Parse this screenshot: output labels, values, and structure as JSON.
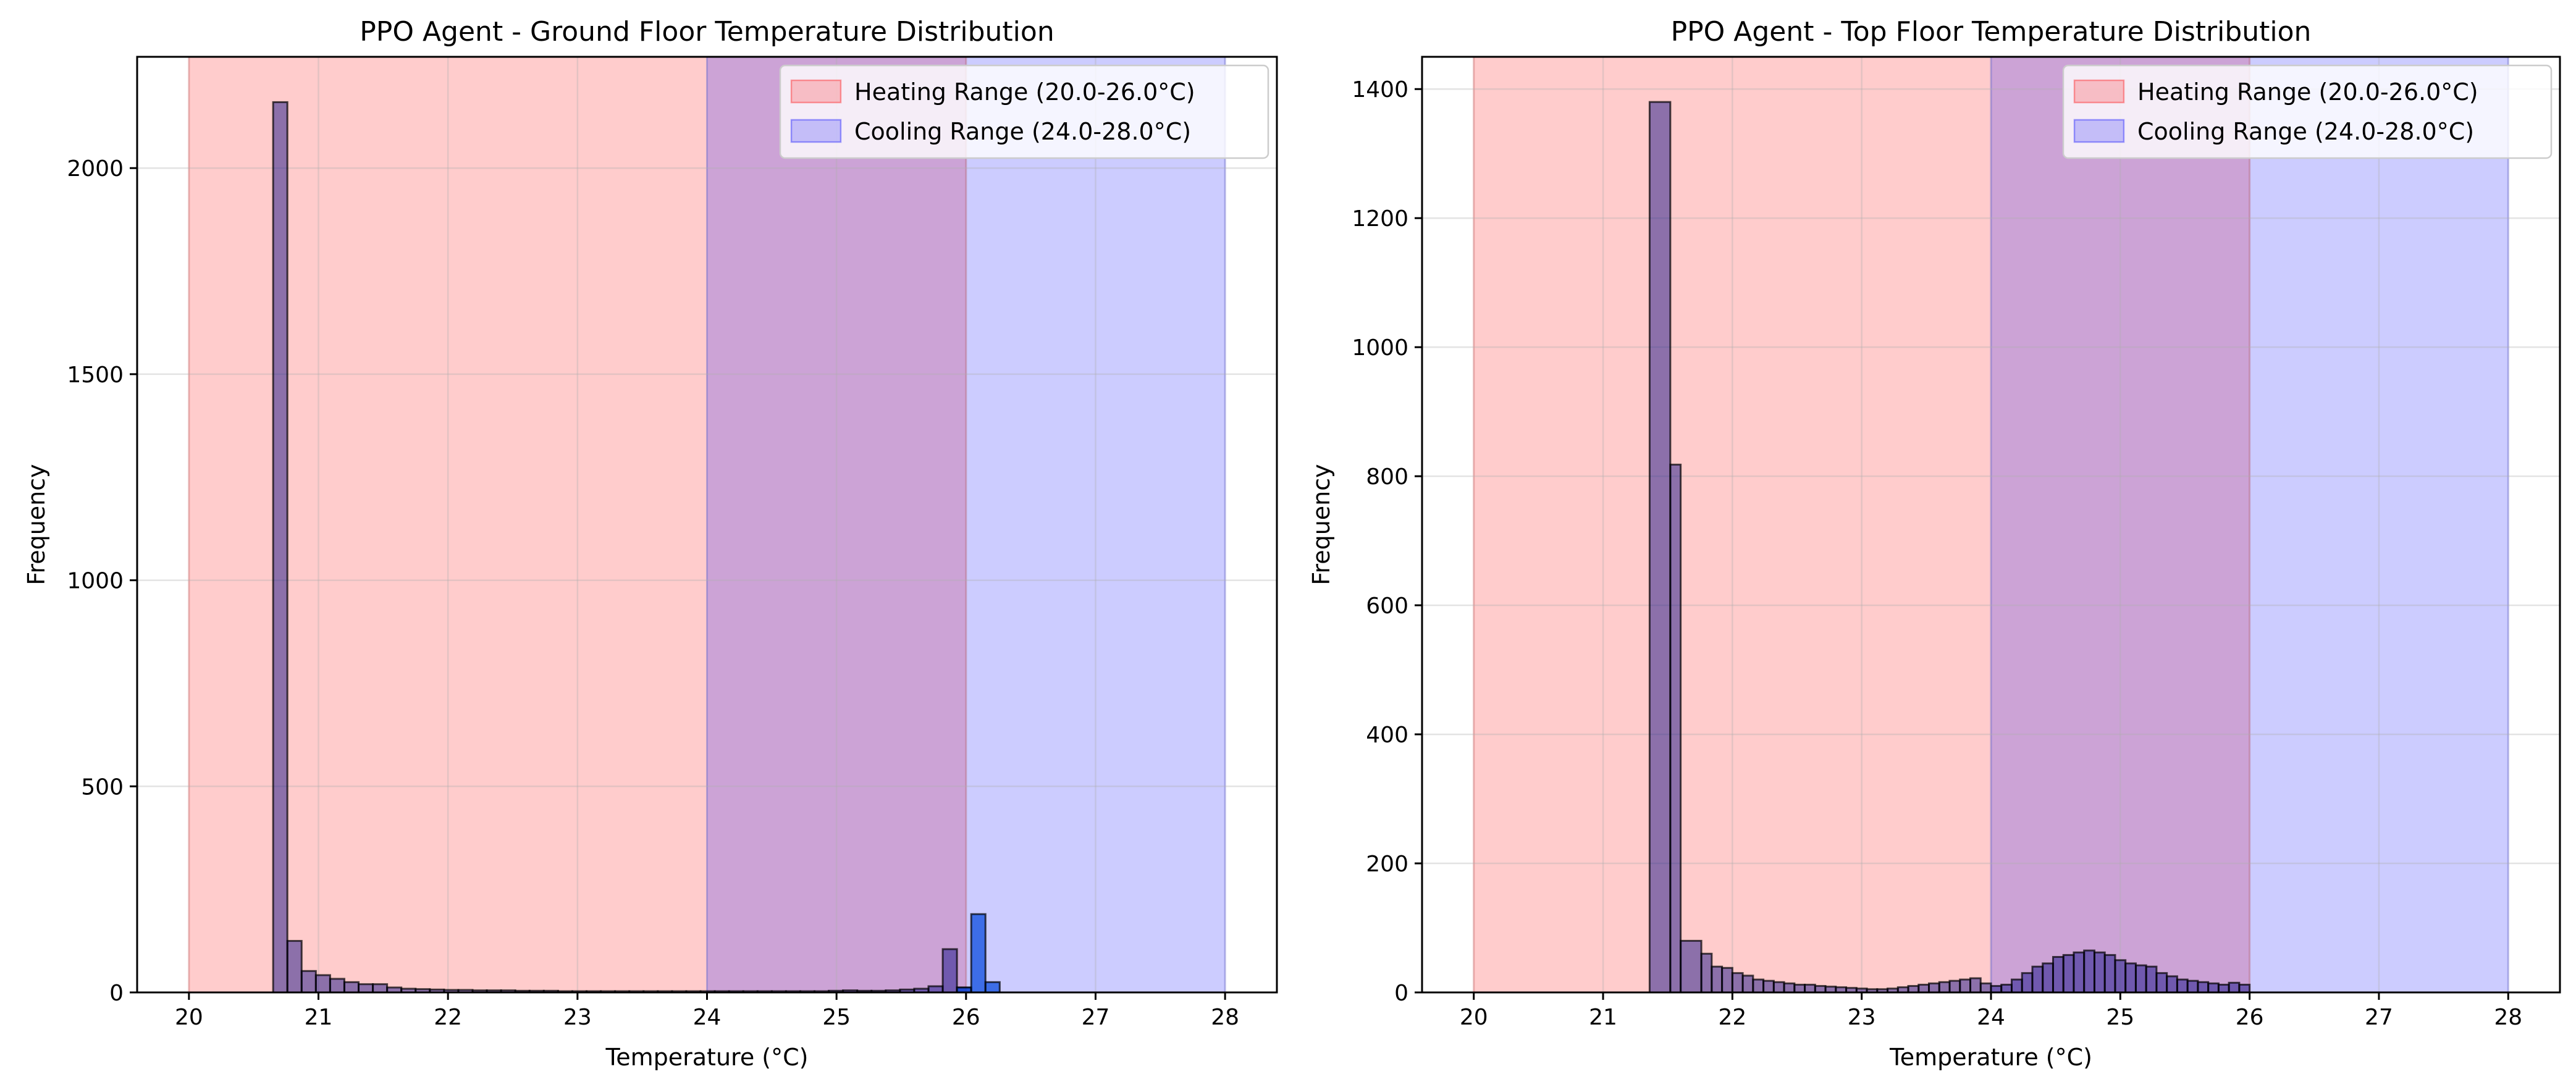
{
  "chart_data": [
    {
      "type": "bar",
      "title": "PPO Agent - Ground Floor Temperature Distribution",
      "xlabel": "Temperature (°C)",
      "ylabel": "Frequency",
      "xlim": [
        19.6,
        28.4
      ],
      "ylim": [
        0,
        2270
      ],
      "xticks": [
        20,
        21,
        22,
        23,
        24,
        25,
        26,
        27,
        28
      ],
      "yticks": [
        0,
        500,
        1000,
        1500,
        2000
      ],
      "grid": true,
      "legend_position": "top-right",
      "shaded_ranges": [
        {
          "name": "Heating Range (20.0-26.0°C)",
          "from": 20.0,
          "to": 26.0,
          "color": "#ff0000",
          "alpha": 0.2
        },
        {
          "name": "Cooling Range (24.0-28.0°C)",
          "from": 24.0,
          "to": 28.0,
          "color": "#0000ff",
          "alpha": 0.2
        }
      ],
      "series": [
        {
          "name": "",
          "color": "#000080",
          "alpha": 0.45,
          "bin_edges": [
            20.65,
            20.76,
            20.87,
            20.98,
            21.09,
            21.2,
            21.31,
            21.42,
            21.53,
            21.64,
            21.75,
            21.86,
            21.97,
            22.08,
            22.19,
            22.3,
            22.41,
            22.52,
            22.63,
            22.74,
            22.85,
            22.96,
            23.07,
            23.18,
            23.29,
            23.4,
            23.51,
            23.62,
            23.73,
            23.84,
            23.95,
            24.06,
            24.17,
            24.28,
            24.39,
            24.5,
            24.61,
            24.72,
            24.83,
            24.94,
            25.05,
            25.16,
            25.27,
            25.38,
            25.49,
            25.6,
            25.71,
            25.82,
            25.93,
            26.04
          ],
          "values": [
            2160,
            125,
            52,
            42,
            33,
            25,
            20,
            20,
            12,
            9,
            8,
            7,
            6,
            6,
            5,
            5,
            5,
            4,
            4,
            4,
            3,
            3,
            3,
            3,
            3,
            3,
            3,
            3,
            3,
            3,
            3,
            3,
            3,
            3,
            3,
            3,
            3,
            3,
            3,
            4,
            5,
            4,
            4,
            5,
            7,
            9,
            15,
            105,
            12
          ]
        },
        {
          "name": "",
          "color": "#0044dd",
          "alpha": 0.7,
          "bin_edges": [
            25.93,
            26.04,
            26.15,
            26.26,
            26.37
          ],
          "values": [
            12,
            190,
            25,
            0
          ]
        }
      ]
    },
    {
      "type": "bar",
      "title": "PPO Agent - Top Floor Temperature Distribution",
      "xlabel": "Temperature (°C)",
      "ylabel": "Frequency",
      "xlim": [
        19.6,
        28.4
      ],
      "ylim": [
        0,
        1450
      ],
      "xticks": [
        20,
        21,
        22,
        23,
        24,
        25,
        26,
        27,
        28
      ],
      "yticks": [
        0,
        200,
        400,
        600,
        800,
        1000,
        1200,
        1400
      ],
      "grid": true,
      "legend_position": "top-right",
      "shaded_ranges": [
        {
          "name": "Heating Range (20.0-26.0°C)",
          "from": 20.0,
          "to": 26.0,
          "color": "#ff0000",
          "alpha": 0.2
        },
        {
          "name": "Cooling Range (24.0-28.0°C)",
          "from": 24.0,
          "to": 28.0,
          "color": "#0000ff",
          "alpha": 0.2
        }
      ],
      "series": [
        {
          "name": "",
          "color": "#000080",
          "alpha": 0.45,
          "bin_edges": [
            21.36,
            21.52,
            21.6,
            21.76,
            21.84,
            21.92,
            22.0,
            22.08,
            22.16,
            22.24,
            22.32,
            22.4,
            22.48,
            22.56,
            22.64,
            22.72,
            22.8,
            22.88,
            22.96,
            23.04,
            23.12,
            23.2,
            23.28,
            23.36,
            23.44,
            23.52,
            23.6,
            23.68,
            23.76,
            23.84,
            23.92,
            24.0,
            24.08,
            24.16,
            24.24,
            24.32,
            24.4,
            24.48,
            24.56,
            24.64,
            24.72,
            24.8,
            24.88,
            24.96,
            25.04,
            25.12,
            25.2,
            25.28,
            25.36,
            25.44,
            25.52,
            25.6,
            25.68,
            25.76,
            25.84,
            25.92,
            26.0
          ],
          "values": [
            1380,
            818,
            80,
            60,
            40,
            38,
            30,
            26,
            20,
            18,
            16,
            14,
            12,
            12,
            10,
            9,
            8,
            7,
            6,
            5,
            5,
            6,
            8,
            10,
            12,
            14,
            16,
            18,
            20,
            22,
            14,
            10,
            12,
            20,
            30,
            40,
            45,
            55,
            58,
            62,
            65,
            62,
            58,
            50,
            45,
            42,
            40,
            30,
            25,
            20,
            18,
            16,
            14,
            12,
            15,
            12
          ]
        }
      ]
    }
  ]
}
